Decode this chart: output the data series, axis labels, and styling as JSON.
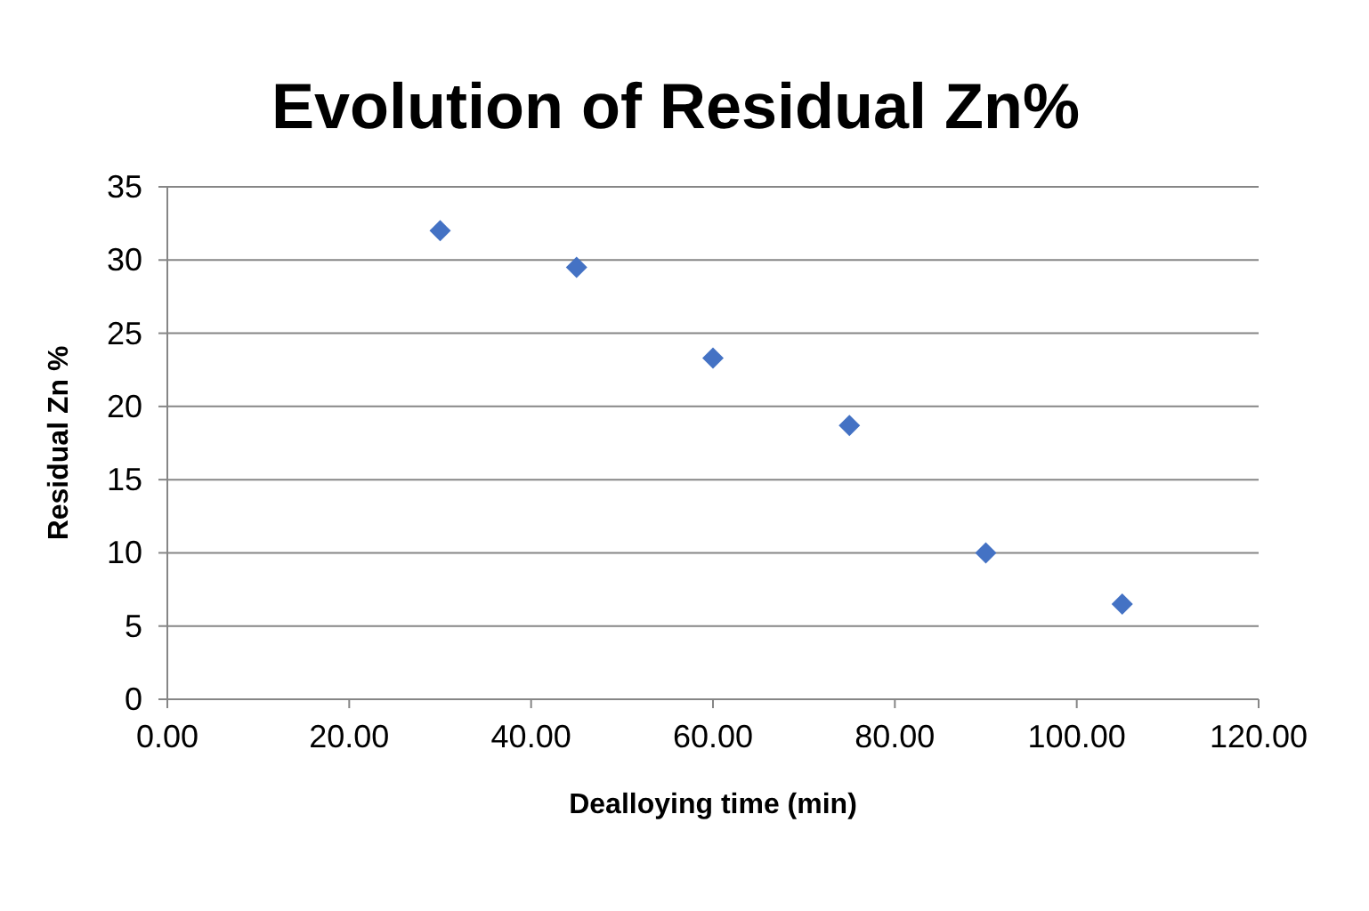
{
  "chart_data": {
    "type": "scatter",
    "title": "Evolution of Residual Zn%",
    "xlabel": "Dealloying time (min)",
    "ylabel": "Residual Zn %",
    "x": [
      30,
      45,
      60,
      75,
      90,
      105
    ],
    "series": [
      {
        "color": "#4472c4",
        "values": [
          32,
          29.5,
          23.3,
          18.7,
          10,
          6.5
        ]
      }
    ],
    "xlim": [
      0,
      120
    ],
    "xticks": [
      {
        "value": 0,
        "label": "0.00"
      },
      {
        "value": 20,
        "label": "20.00"
      },
      {
        "value": 40,
        "label": "40.00"
      },
      {
        "value": 60,
        "label": "60.00"
      },
      {
        "value": 80,
        "label": "80.00"
      },
      {
        "value": 100,
        "label": "100.00"
      },
      {
        "value": 120,
        "label": "120.00"
      }
    ],
    "ylim": [
      0,
      35
    ],
    "yticks": [
      0,
      5,
      10,
      15,
      20,
      25,
      30,
      35
    ],
    "grid": "y",
    "marker": "diamond"
  }
}
